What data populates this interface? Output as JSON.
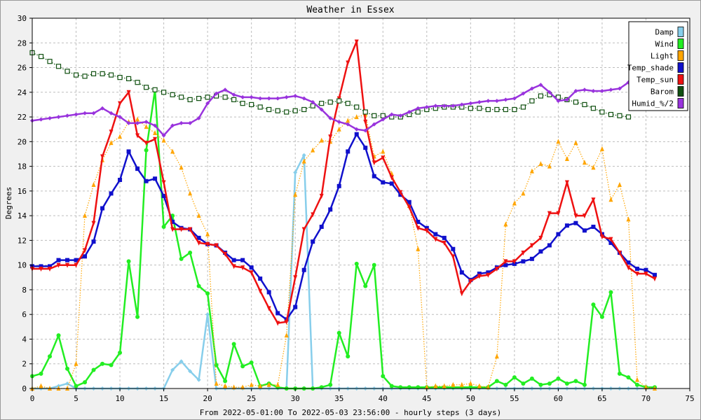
{
  "chart_data": {
    "type": "line",
    "title": "Weather in Essex",
    "xlabel": "From 2022-05-01:00 To 2022-05-03 23:56:00 - hourly steps (3 days)",
    "ylabel": "Degrees",
    "xlim": [
      0,
      75
    ],
    "ylim": [
      0,
      30
    ],
    "xticks": [
      0,
      5,
      10,
      15,
      20,
      25,
      30,
      35,
      40,
      45,
      50,
      55,
      60,
      65,
      70,
      75
    ],
    "yticks": [
      0,
      2,
      4,
      6,
      8,
      10,
      12,
      14,
      16,
      18,
      20,
      22,
      24,
      26,
      28,
      30
    ],
    "grid": true,
    "legend": "top-right",
    "series": [
      {
        "name": "Damp",
        "color": "#87ceeb",
        "marker": "diamond",
        "style": "solid",
        "values": [
          0,
          0,
          0,
          0.2,
          0.4,
          0,
          0,
          0,
          0,
          0,
          0,
          0,
          0,
          0,
          0,
          0,
          1.5,
          2.2,
          1.4,
          0.7,
          6.0,
          0,
          0,
          0,
          0,
          0,
          0,
          0,
          0,
          0,
          17.5,
          18.9,
          0,
          0,
          0,
          0,
          0,
          0,
          0,
          0,
          0,
          0,
          0,
          0,
          0,
          0,
          0,
          0,
          0,
          0,
          0,
          0,
          0,
          0,
          0,
          0,
          0,
          0,
          0,
          0,
          0,
          0,
          0,
          0,
          0,
          0,
          0,
          0,
          0,
          0,
          0,
          0
        ]
      },
      {
        "name": "Wind",
        "color": "#22ee22",
        "marker": "circle",
        "style": "solid",
        "values": [
          1.0,
          1.2,
          2.6,
          4.3,
          1.6,
          0.2,
          0.5,
          1.5,
          2.0,
          1.9,
          2.9,
          10.3,
          5.8,
          19.3,
          24.2,
          13.1,
          14.0,
          10.5,
          11.0,
          8.3,
          7.7,
          1.9,
          0.6,
          3.6,
          1.8,
          2.1,
          0.2,
          0.4,
          0.1,
          0,
          0,
          0,
          0,
          0.1,
          0.3,
          4.5,
          2.6,
          10.1,
          8.3,
          10.0,
          1.0,
          0.2,
          0.1,
          0.1,
          0.1,
          0.1,
          0.1,
          0.1,
          0.1,
          0.1,
          0.1,
          0.1,
          0.1,
          0.6,
          0.3,
          0.9,
          0.4,
          0.8,
          0.3,
          0.4,
          0.8,
          0.4,
          0.6,
          0.3,
          6.8,
          5.8,
          7.8,
          1.2,
          0.9,
          0.3,
          0.1,
          0.1
        ]
      },
      {
        "name": "Light",
        "color": "#ffa500",
        "marker": "triangle",
        "style": "dotted",
        "values": [
          0,
          0.2,
          0,
          0,
          0,
          2.0,
          14.0,
          16.5,
          18.5,
          19.9,
          20.4,
          21.6,
          21.8,
          21.2,
          20.7,
          20.1,
          19.2,
          17.9,
          15.8,
          14.0,
          12.5,
          0.4,
          0.2,
          0.1,
          0.1,
          0.3,
          0.2,
          0.3,
          0.3,
          4.3,
          15.7,
          18.4,
          19.3,
          20.1,
          20.0,
          21.0,
          21.7,
          22.0,
          22.2,
          18.8,
          19.2,
          17.4,
          15.7,
          14.8,
          11.3,
          0.1,
          0.2,
          0.2,
          0.3,
          0.3,
          0.4,
          0.2,
          0.1,
          2.6,
          13.3,
          15.0,
          15.8,
          17.6,
          18.2,
          18.0,
          20.0,
          18.6,
          19.9,
          18.3,
          17.9,
          19.4,
          15.3,
          16.5,
          13.7,
          0.7,
          0.1,
          0
        ]
      },
      {
        "name": "Temp_shade",
        "color": "#1010cc",
        "marker": "square",
        "style": "solid",
        "values": [
          9.9,
          9.9,
          9.9,
          10.4,
          10.4,
          10.4,
          10.7,
          11.9,
          14.6,
          15.8,
          16.9,
          19.2,
          17.8,
          16.8,
          17.0,
          15.6,
          13.5,
          13.0,
          12.9,
          12.2,
          11.7,
          11.6,
          11.0,
          10.4,
          10.4,
          9.8,
          8.9,
          7.8,
          6.1,
          5.6,
          6.6,
          9.6,
          11.9,
          13.1,
          14.5,
          16.4,
          19.2,
          20.6,
          19.5,
          17.2,
          16.7,
          16.6,
          15.7,
          15.1,
          13.5,
          13.0,
          12.5,
          12.2,
          11.3,
          9.4,
          8.8,
          9.3,
          9.4,
          9.8,
          10.0,
          10.1,
          10.3,
          10.5,
          11.1,
          11.6,
          12.5,
          13.2,
          13.4,
          12.8,
          13.1,
          12.5,
          11.8,
          11.0,
          10.2,
          9.7,
          9.6,
          9.2
        ]
      },
      {
        "name": "Temp_sun",
        "color": "#ee1111",
        "marker": "triangle-down",
        "style": "solid",
        "values": [
          9.7,
          9.7,
          9.7,
          10.0,
          10.0,
          10.0,
          11.2,
          13.4,
          18.8,
          20.8,
          23.1,
          24.0,
          20.5,
          19.9,
          20.2,
          16.7,
          12.9,
          12.9,
          12.9,
          11.8,
          11.7,
          11.6,
          10.9,
          9.9,
          9.8,
          9.4,
          7.9,
          6.5,
          5.3,
          5.4,
          9.0,
          12.9,
          14.1,
          15.6,
          20.4,
          23.5,
          26.4,
          28.1,
          21.6,
          18.3,
          18.7,
          17.1,
          15.9,
          14.7,
          13.0,
          12.8,
          12.1,
          11.8,
          10.7,
          7.7,
          8.7,
          9.1,
          9.2,
          9.7,
          10.3,
          10.3,
          11.0,
          11.6,
          12.2,
          14.2,
          14.2,
          16.7,
          14.0,
          14.0,
          15.3,
          12.3,
          12.1,
          11.0,
          9.8,
          9.3,
          9.3,
          8.9
        ]
      },
      {
        "name": "Barom",
        "color": "#105010",
        "marker": "open-square",
        "style": "dotted",
        "values": [
          27.2,
          26.9,
          26.5,
          26.1,
          25.7,
          25.4,
          25.3,
          25.5,
          25.5,
          25.4,
          25.2,
          25.1,
          24.8,
          24.4,
          24.2,
          24.0,
          23.8,
          23.6,
          23.4,
          23.5,
          23.6,
          23.7,
          23.6,
          23.4,
          23.1,
          23.0,
          22.8,
          22.6,
          22.5,
          22.4,
          22.5,
          22.6,
          22.9,
          23.1,
          23.2,
          23.3,
          23.1,
          22.8,
          22.4,
          22.1,
          22.1,
          22.0,
          22.0,
          22.2,
          22.4,
          22.6,
          22.7,
          22.8,
          22.8,
          22.8,
          22.7,
          22.7,
          22.6,
          22.6,
          22.6,
          22.6,
          22.8,
          23.3,
          23.7,
          23.8,
          23.6,
          23.4,
          23.2,
          23.0,
          22.7,
          22.4,
          22.2,
          22.1,
          22.0,
          null,
          null,
          null
        ]
      },
      {
        "name": "Humid_%/2",
        "color": "#9933dd",
        "marker": "diamond",
        "style": "solid",
        "values": [
          21.7,
          21.8,
          21.9,
          22.0,
          22.1,
          22.2,
          22.3,
          22.3,
          22.7,
          22.3,
          22.0,
          21.5,
          21.5,
          21.6,
          21.3,
          20.5,
          21.3,
          21.5,
          21.5,
          21.9,
          23.1,
          23.9,
          24.2,
          23.8,
          23.6,
          23.6,
          23.5,
          23.5,
          23.5,
          23.6,
          23.7,
          23.5,
          23.2,
          22.6,
          21.9,
          21.6,
          21.4,
          21.0,
          20.9,
          21.4,
          21.8,
          22.2,
          22.1,
          22.4,
          22.7,
          22.8,
          22.9,
          22.9,
          22.9,
          23.0,
          23.1,
          23.2,
          23.3,
          23.3,
          23.4,
          23.5,
          23.9,
          24.3,
          24.6,
          24.0,
          23.3,
          23.4,
          24.1,
          24.2,
          24.1,
          24.1,
          24.2,
          24.3,
          24.8,
          null,
          null,
          null
        ]
      }
    ]
  }
}
